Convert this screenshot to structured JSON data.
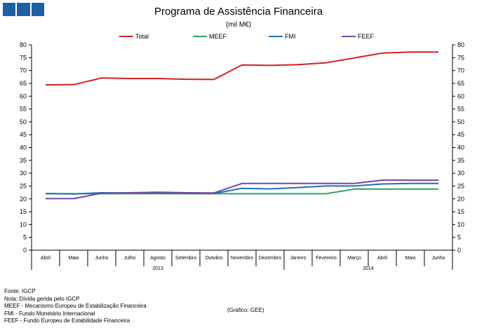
{
  "header": {
    "logo_name": "publisher-logo"
  },
  "chart_data": {
    "type": "line",
    "title": "Programa de Assistência Financeira",
    "subtitle": "(mil M€)",
    "categories": [
      "Abril",
      "Maio",
      "Junho",
      "Julho",
      "Agosto",
      "Setembro",
      "Outubro",
      "Novembro",
      "Dezembro",
      "Janeiro",
      "Fevereiro",
      "Março",
      "Abril",
      "Maio",
      "Junho"
    ],
    "year_groups": [
      {
        "label": "2013",
        "start": 0,
        "end": 8
      },
      {
        "label": "2014",
        "start": 9,
        "end": 14
      }
    ],
    "ylim": [
      0,
      80
    ],
    "yticks": [
      0,
      5,
      10,
      15,
      20,
      25,
      30,
      35,
      40,
      45,
      50,
      55,
      60,
      65,
      70,
      75,
      80
    ],
    "series": [
      {
        "name": "Total",
        "color": "#d42020",
        "values": [
          64.4,
          64.5,
          67.1,
          66.9,
          66.9,
          66.6,
          66.5,
          72.2,
          72.0,
          72.3,
          73.0,
          74.9,
          76.8,
          77.2,
          77.2
        ]
      },
      {
        "name": "MEEF",
        "color": "#2ca35e",
        "values": [
          22.0,
          22.0,
          22.0,
          22.0,
          22.0,
          22.0,
          22.0,
          22.0,
          22.0,
          22.0,
          22.0,
          23.8,
          23.8,
          23.8,
          23.8
        ]
      },
      {
        "name": "FMI",
        "color": "#1b72b4",
        "values": [
          22.1,
          21.9,
          22.4,
          22.3,
          22.3,
          22.2,
          22.1,
          24.1,
          23.9,
          24.4,
          25.0,
          25.0,
          25.8,
          26.0,
          26.0
        ]
      },
      {
        "name": "FEEF",
        "color": "#7a45a0",
        "values": [
          20.1,
          20.1,
          22.2,
          22.4,
          22.6,
          22.4,
          22.3,
          26.0,
          26.0,
          26.0,
          26.0,
          26.0,
          27.3,
          27.3,
          27.3
        ]
      }
    ]
  },
  "footnotes": [
    "Fonte: IGCP",
    "Nota: Dívida gerida pelo IGCP",
    "MEEF - Mecanismo Europeu de Estabilização Financeira",
    "FMI - Fundo Monetário Internacional",
    "FEEF - Fundo Europeu de Estabilidade Financeira"
  ],
  "credit": "(Gráfico: GEE)"
}
